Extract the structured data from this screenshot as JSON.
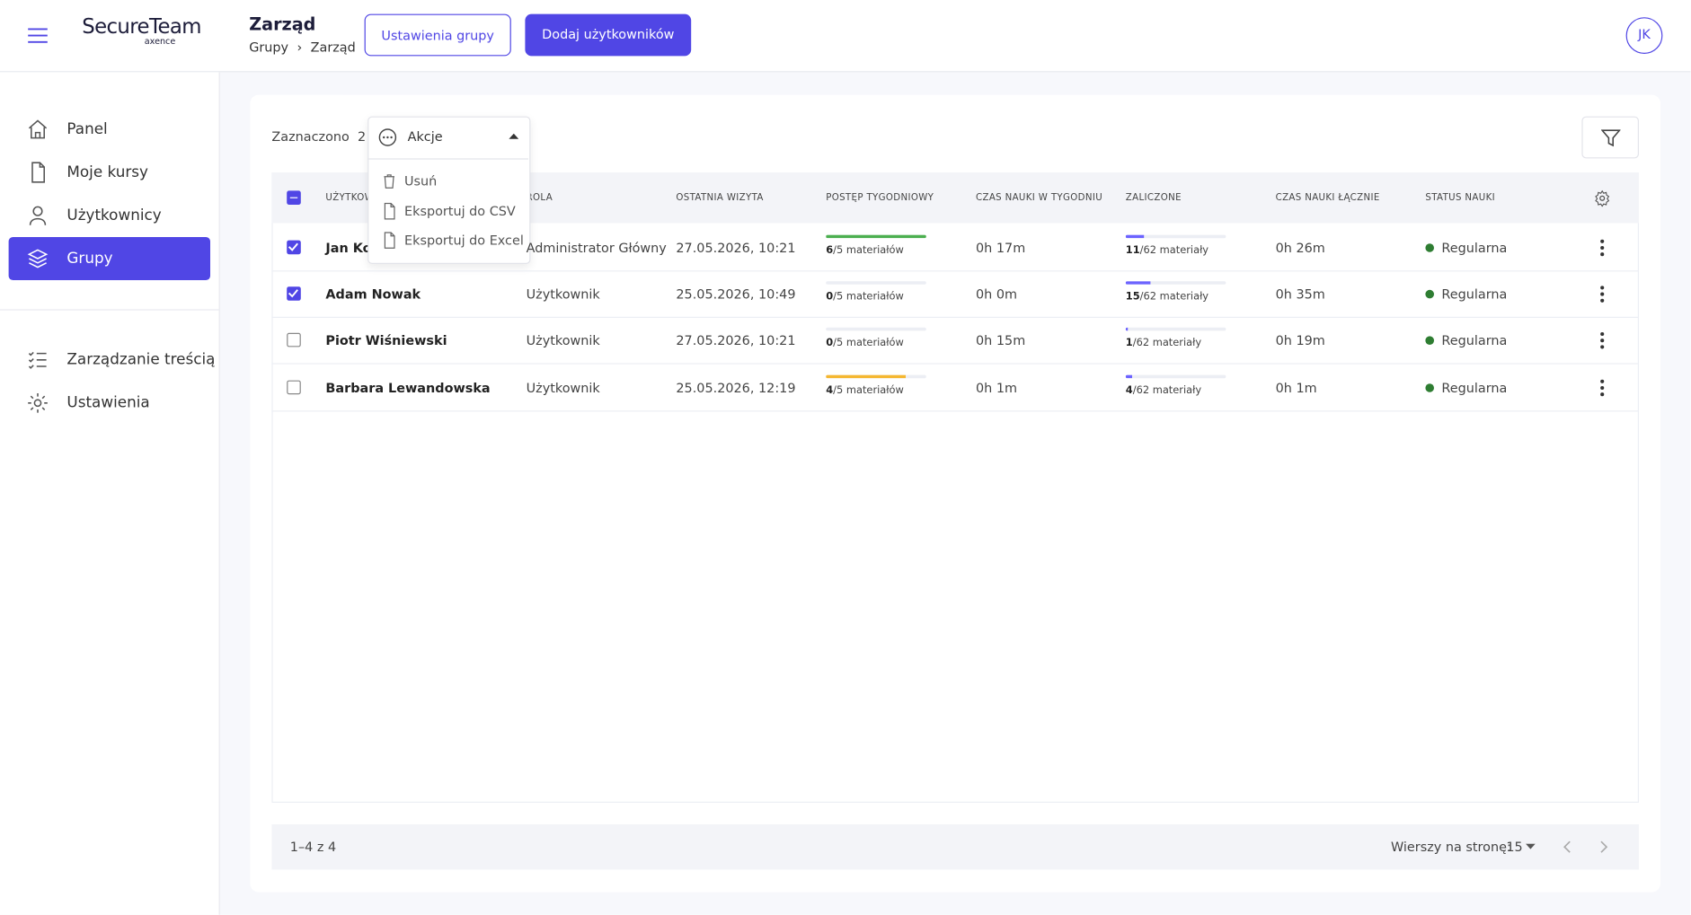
{
  "header": {
    "logo": "SecureTeam",
    "logo_sub": "axence",
    "title": "Zarząd",
    "breadcrumb": [
      "Grupy",
      "Zarząd"
    ],
    "buttons": [
      "Ustawienia grupy",
      "Dodaj użytkowników"
    ],
    "avatar": "JK"
  },
  "sidebar": {
    "main": [
      "Panel",
      "Moje kursy",
      "Użytkownicy",
      "Grupy"
    ],
    "active": 3,
    "secondary": [
      "Zarządzanie treścią",
      "Ustawienia"
    ]
  },
  "toolbar": {
    "selected_label": "Zaznaczono",
    "selected_count": 2,
    "actions": "Akcje",
    "menu": [
      "Usuń",
      "Eksportuj do CSV",
      "Eksportuj do Excel"
    ]
  },
  "table": {
    "columns": [
      "UŻYTKOWNIK",
      "ROLA",
      "OSTATNIA WIZYTA",
      "POSTĘP TYGODNIOWY",
      "CZAS NAUKI W TYGODNIU",
      "ZALICZONE",
      "CZAS NAUKI ŁĄCZNIE",
      "STATUS NAUKI"
    ],
    "rows": [
      {
        "checked": true,
        "name": "Jan Kowalski",
        "role": "Administrator Główny",
        "last_visit": "27.05.2026, 10:21",
        "weekly": {
          "done": 6,
          "total": 5,
          "rest": "/5 materiałów"
        },
        "weekly_time": "0h 17m",
        "passed": {
          "done": 11,
          "total": 62,
          "rest": "/62 materiały"
        },
        "total_time": "0h 26m",
        "status": "Regularna"
      },
      {
        "checked": true,
        "name": "Adam Nowak",
        "role": "Użytkownik",
        "last_visit": "25.05.2026, 10:49",
        "weekly": {
          "done": 0,
          "total": 5,
          "rest": "/5 materiałów"
        },
        "weekly_time": "0h 0m",
        "passed": {
          "done": 15,
          "total": 62,
          "rest": "/62 materiały"
        },
        "total_time": "0h 35m",
        "status": "Regularna"
      },
      {
        "checked": false,
        "name": "Piotr Wiśniewski",
        "role": "Użytkownik",
        "last_visit": "27.05.2026, 10:21",
        "weekly": {
          "done": 0,
          "total": 5,
          "rest": "/5 materiałów"
        },
        "weekly_time": "0h 15m",
        "passed": {
          "done": 1,
          "total": 62,
          "rest": "/62 materiały"
        },
        "total_time": "0h 19m",
        "status": "Regularna"
      },
      {
        "checked": false,
        "name": "Barbara Lewandowska",
        "role": "Użytkownik",
        "last_visit": "25.05.2026, 12:19",
        "weekly": {
          "done": 4,
          "total": 5,
          "rest": "/5 materiałów"
        },
        "weekly_time": "0h 1m",
        "passed": {
          "done": 4,
          "total": 62,
          "rest": "/62 materiały"
        },
        "total_time": "0h 1m",
        "status": "Regularna"
      }
    ]
  },
  "pagination": {
    "range": "1–4 z 4",
    "rows_label": "Wierszy na stronę:",
    "rows_per_page": 15
  }
}
